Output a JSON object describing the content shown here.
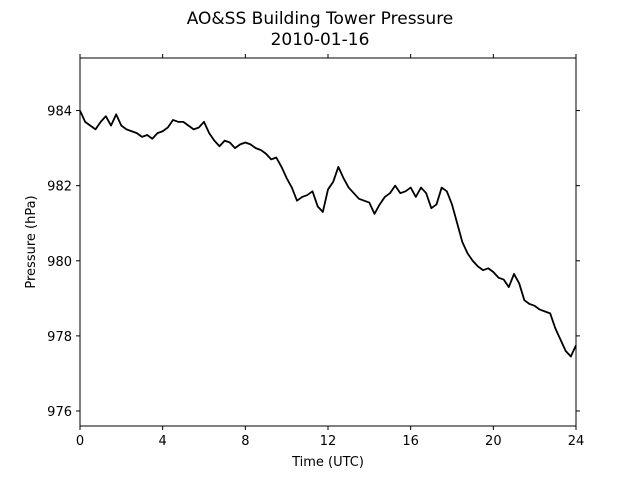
{
  "chart_data": {
    "type": "line",
    "title": "AO&SS Building Tower Pressure",
    "subtitle": "2010-01-16",
    "xlabel": "Time (UTC)",
    "ylabel": "Pressure (hPa)",
    "xlim": [
      0,
      24
    ],
    "ylim": [
      975.6,
      985.4
    ],
    "xticks": [
      0,
      4,
      8,
      12,
      16,
      20,
      24
    ],
    "xtick_labels": [
      "0",
      "4",
      "8",
      "12",
      "16",
      "20",
      "24"
    ],
    "yticks": [
      976,
      978,
      980,
      982,
      984
    ],
    "ytick_labels": [
      "976",
      "978",
      "980",
      "982",
      "984"
    ],
    "grid": false,
    "line_color": "#000000",
    "series": [
      {
        "x": [
          0,
          0.25,
          0.5,
          0.75,
          1.0,
          1.25,
          1.5,
          1.75,
          2.0,
          2.25,
          2.5,
          2.75,
          3.0,
          3.25,
          3.5,
          3.75,
          4.0,
          4.25,
          4.5,
          4.75,
          5.0,
          5.25,
          5.5,
          5.75,
          6.0,
          6.25,
          6.5,
          6.75,
          7.0,
          7.25,
          7.5,
          7.75,
          8.0,
          8.25,
          8.5,
          8.75,
          9.0,
          9.25,
          9.5,
          9.75,
          10.0,
          10.25,
          10.5,
          10.75,
          11.0,
          11.25,
          11.5,
          11.75,
          12.0,
          12.25,
          12.5,
          12.75,
          13.0,
          13.25,
          13.5,
          13.75,
          14.0,
          14.25,
          14.5,
          14.75,
          15.0,
          15.25,
          15.5,
          15.75,
          16.0,
          16.25,
          16.5,
          16.75,
          17.0,
          17.25,
          17.5,
          17.75,
          18.0,
          18.25,
          18.5,
          18.75,
          19.0,
          19.25,
          19.5,
          19.75,
          20.0,
          20.25,
          20.5,
          20.75,
          21.0,
          21.25,
          21.5,
          21.75,
          22.0,
          22.25,
          22.5,
          22.75,
          23.0,
          23.25,
          23.5,
          23.75,
          24.0
        ],
        "values": [
          984.0,
          983.7,
          983.6,
          983.5,
          983.7,
          983.85,
          983.6,
          983.9,
          983.6,
          983.5,
          983.45,
          983.4,
          983.3,
          983.35,
          983.25,
          983.4,
          983.45,
          983.55,
          983.75,
          983.7,
          983.7,
          983.6,
          983.5,
          983.55,
          983.7,
          983.4,
          983.2,
          983.05,
          983.2,
          983.15,
          983.0,
          983.1,
          983.15,
          983.1,
          983.0,
          982.95,
          982.85,
          982.7,
          982.75,
          982.5,
          982.2,
          981.95,
          981.6,
          981.7,
          981.75,
          981.85,
          981.45,
          981.3,
          981.9,
          982.1,
          982.5,
          982.2,
          981.95,
          981.8,
          981.65,
          981.6,
          981.55,
          981.25,
          981.5,
          981.7,
          981.8,
          982.0,
          981.8,
          981.85,
          981.95,
          981.7,
          981.95,
          981.8,
          981.4,
          981.5,
          981.95,
          981.85,
          981.5,
          981.0,
          980.5,
          980.2,
          980.0,
          979.85,
          979.75,
          979.8,
          979.7,
          979.55,
          979.5,
          979.3,
          979.65,
          979.4,
          978.95,
          978.85,
          978.8,
          978.7,
          978.65,
          978.6,
          978.2,
          977.9,
          977.6,
          977.45,
          977.75
        ]
      }
    ]
  }
}
